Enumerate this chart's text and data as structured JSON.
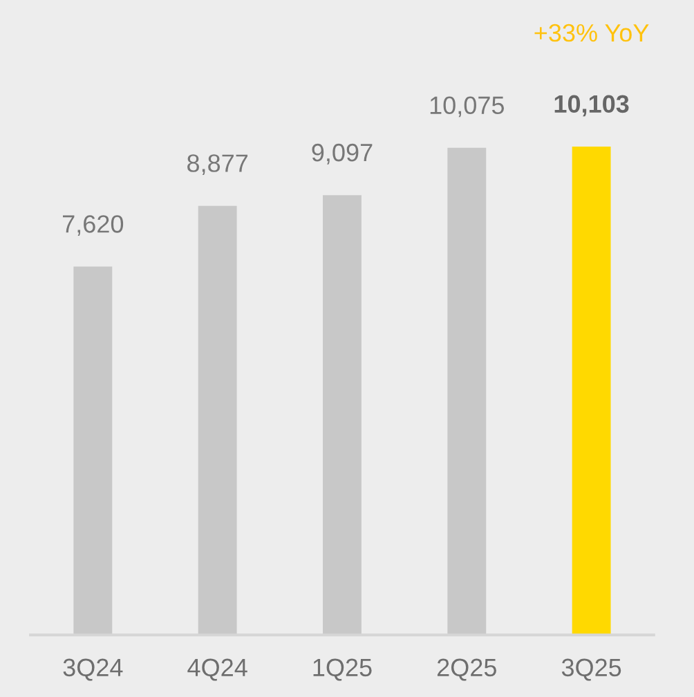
{
  "chart_data": {
    "type": "bar",
    "categories": [
      "3Q24",
      "4Q24",
      "1Q25",
      "2Q25",
      "3Q25"
    ],
    "values": [
      7620,
      8877,
      9097,
      10075,
      10103
    ],
    "value_labels": [
      "7,620",
      "8,877",
      "9,097",
      "10,075",
      "10,103"
    ],
    "colors": [
      "#c8c8c8",
      "#c8c8c8",
      "#c8c8c8",
      "#c8c8c8",
      "#ffd900"
    ],
    "tick_labels": "x",
    "annotations": [
      "+33% YoY"
    ]
  }
}
